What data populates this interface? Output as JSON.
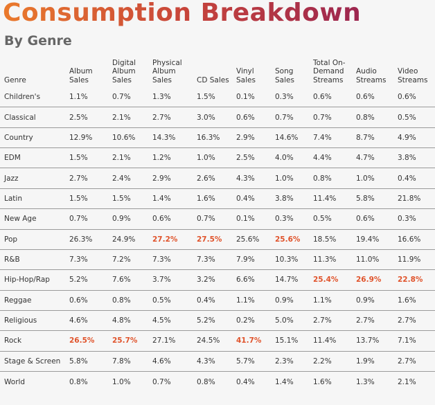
{
  "header": {
    "title": "Consumption Breakdown",
    "subtitle": "By Genre"
  },
  "table": {
    "columns": [
      "Genre",
      "Album Sales",
      "Digital Album Sales",
      "Physical Album Sales",
      "CD Sales",
      "Vinyl Sales",
      "Song Sales",
      "Total On-Demand Streams",
      "Audio Streams",
      "Video Streams"
    ],
    "highlight_color": "#e0532b",
    "rows": [
      [
        "Children's",
        "1.1%",
        "0.7%",
        "1.3%",
        "1.5%",
        "0.1%",
        "0.3%",
        "0.6%",
        "0.6%",
        "0.6%"
      ],
      [
        "Classical",
        "2.5%",
        "2.1%",
        "2.7%",
        "3.0%",
        "0.6%",
        "0.7%",
        "0.7%",
        "0.8%",
        "0.5%"
      ],
      [
        "Country",
        "12.9%",
        "10.6%",
        "14.3%",
        "16.3%",
        "2.9%",
        "14.6%",
        "7.4%",
        "8.7%",
        "4.9%"
      ],
      [
        "EDM",
        "1.5%",
        "2.1%",
        "1.2%",
        "1.0%",
        "2.5%",
        "4.0%",
        "4.4%",
        "4.7%",
        "3.8%"
      ],
      [
        "Jazz",
        "2.7%",
        "2.4%",
        "2.9%",
        "2.6%",
        "4.3%",
        "1.0%",
        "0.8%",
        "1.0%",
        "0.4%"
      ],
      [
        "Latin",
        "1.5%",
        "1.5%",
        "1.4%",
        "1.6%",
        "0.4%",
        "3.8%",
        "11.4%",
        "5.8%",
        "21.8%"
      ],
      [
        "New Age",
        "0.7%",
        "0.9%",
        "0.6%",
        "0.7%",
        "0.1%",
        "0.3%",
        "0.5%",
        "0.6%",
        "0.3%"
      ],
      [
        "Pop",
        "26.3%",
        "24.9%",
        "27.2%",
        "27.5%",
        "25.6%",
        "25.6%",
        "18.5%",
        "19.4%",
        "16.6%"
      ],
      [
        "R&B",
        "7.3%",
        "7.2%",
        "7.3%",
        "7.3%",
        "7.9%",
        "10.3%",
        "11.3%",
        "11.0%",
        "11.9%"
      ],
      [
        "Hip-Hop/Rap",
        "5.2%",
        "7.6%",
        "3.7%",
        "3.2%",
        "6.6%",
        "14.7%",
        "25.4%",
        "26.9%",
        "22.8%"
      ],
      [
        "Reggae",
        "0.6%",
        "0.8%",
        "0.5%",
        "0.4%",
        "1.1%",
        "0.9%",
        "1.1%",
        "0.9%",
        "1.6%"
      ],
      [
        "Religious",
        "4.6%",
        "4.8%",
        "4.5%",
        "5.2%",
        "0.2%",
        "5.0%",
        "2.7%",
        "2.7%",
        "2.7%"
      ],
      [
        "Rock",
        "26.5%",
        "25.7%",
        "27.1%",
        "24.5%",
        "41.7%",
        "15.1%",
        "11.4%",
        "13.7%",
        "7.1%"
      ],
      [
        "Stage & Screen",
        "5.8%",
        "7.8%",
        "4.6%",
        "4.3%",
        "5.7%",
        "2.3%",
        "2.2%",
        "1.9%",
        "2.7%"
      ],
      [
        "World",
        "0.8%",
        "1.0%",
        "0.7%",
        "0.8%",
        "0.4%",
        "1.4%",
        "1.6%",
        "1.3%",
        "2.1%"
      ]
    ]
  }
}
